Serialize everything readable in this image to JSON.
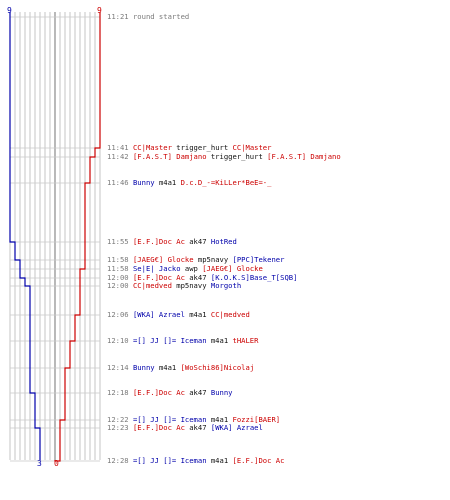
{
  "scores": {
    "top_left": "9",
    "top_right": "9",
    "bottom_blue": "3",
    "bottom_red": "0"
  },
  "colors": {
    "red_team": "#cc0000",
    "blue_team": "#0000aa",
    "grid": "#b8b8b8",
    "neutral": "#111111"
  },
  "events": [
    {
      "time": "11:21",
      "note": "round started"
    },
    {
      "time": "11:41",
      "killer": "CC|Master",
      "killer_team": "red",
      "weapon": "trigger_hurt",
      "victim": "CC|Master",
      "victim_team": "red"
    },
    {
      "time": "11:42",
      "killer": "[F.A.S.T] Damjano",
      "killer_team": "red",
      "weapon": "trigger_hurt",
      "victim": "[F.A.S.T] Damjano",
      "victim_team": "red"
    },
    {
      "time": "11:46",
      "killer": "Bunny",
      "killer_team": "blue",
      "weapon": "m4a1",
      "victim": "D.c.D_-=KiLLer*BeE=-_",
      "victim_team": "red"
    },
    {
      "time": "11:55",
      "killer": "[E.F.]Doc Ac",
      "killer_team": "red",
      "weapon": "ak47",
      "victim": "HotRed",
      "victim_team": "blue"
    },
    {
      "time": "11:58",
      "killer": "[JAEG€] Glocke",
      "killer_team": "red",
      "weapon": "mp5navy",
      "victim": "[PPC]Tekener",
      "victim_team": "blue"
    },
    {
      "time": "11:58",
      "killer": "Se|E| Jacko",
      "killer_team": "blue",
      "weapon": "awp",
      "victim": "[JAEG€] Glocke",
      "victim_team": "red"
    },
    {
      "time": "12:00",
      "killer": "[E.F.]Doc Ac",
      "killer_team": "red",
      "weapon": "ak47",
      "victim": "[K.O.K.S]Base_T[SQB]",
      "victim_team": "blue"
    },
    {
      "time": "12:00",
      "killer": "CC|medved",
      "killer_team": "red",
      "weapon": "mp5navy",
      "victim": "Morgoth",
      "victim_team": "blue"
    },
    {
      "time": "12:06",
      "killer": "[WKA] Azrael",
      "killer_team": "blue",
      "weapon": "m4a1",
      "victim": "CC|medved",
      "victim_team": "red"
    },
    {
      "time": "12:10",
      "killer": "=[] JJ []= Iceman",
      "killer_team": "blue",
      "weapon": "m4a1",
      "victim": "tHALER",
      "victim_team": "red"
    },
    {
      "time": "12:14",
      "killer": "Bunny",
      "killer_team": "blue",
      "weapon": "m4a1",
      "victim": "[WoSchi86]Nicolaj",
      "victim_team": "red"
    },
    {
      "time": "12:18",
      "killer": "[E.F.]Doc Ac",
      "killer_team": "red",
      "weapon": "ak47",
      "victim": "Bunny",
      "victim_team": "blue"
    },
    {
      "time": "12:22",
      "killer": "=[] JJ []= Iceman",
      "killer_team": "blue",
      "weapon": "m4a1",
      "victim": "Fozzi[BAER]",
      "victim_team": "red"
    },
    {
      "time": "12:23",
      "killer": "[E.F.]Doc Ac",
      "killer_team": "red",
      "weapon": "ak47",
      "victim": "[WKA] Azrael",
      "victim_team": "blue"
    },
    {
      "time": "12:28",
      "killer": "=[] JJ []= Iceman",
      "killer_team": "blue",
      "weapon": "m4a1",
      "victim": "[E.F.]Doc Ac",
      "victim_team": "red"
    }
  ]
}
